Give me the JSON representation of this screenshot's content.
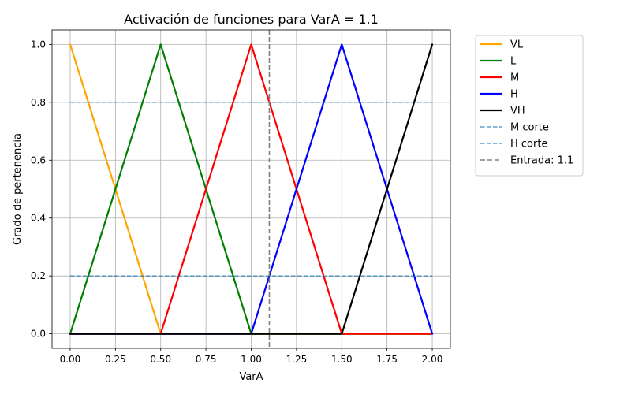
{
  "chart_data": {
    "type": "line",
    "title": "Activación de funciones para VarA = 1.1",
    "xlabel": "VarA",
    "ylabel": "Grado de pertenencia",
    "xlim": [
      -0.1,
      2.1
    ],
    "ylim": [
      -0.05,
      1.05
    ],
    "x_ticks": [
      0.0,
      0.25,
      0.5,
      0.75,
      1.0,
      1.25,
      1.5,
      1.75,
      2.0
    ],
    "x_tick_labels": [
      "0.00",
      "0.25",
      "0.50",
      "0.75",
      "1.00",
      "1.25",
      "1.50",
      "1.75",
      "2.00"
    ],
    "y_ticks": [
      0.0,
      0.2,
      0.4,
      0.6,
      0.8,
      1.0
    ],
    "y_tick_labels": [
      "0.0",
      "0.2",
      "0.4",
      "0.6",
      "0.8",
      "1.0"
    ],
    "grid": true,
    "legend_position": "outside-right-top",
    "series": [
      {
        "name": "VL",
        "color": "#ffa500",
        "style": "solid",
        "x": [
          0.0,
          0.5,
          2.0
        ],
        "y": [
          1.0,
          0.0,
          0.0
        ]
      },
      {
        "name": "L",
        "color": "#008000",
        "style": "solid",
        "x": [
          0.0,
          0.5,
          1.0,
          2.0
        ],
        "y": [
          0.0,
          1.0,
          0.0,
          0.0
        ]
      },
      {
        "name": "M",
        "color": "#ff0000",
        "style": "solid",
        "x": [
          0.0,
          0.5,
          1.0,
          1.5,
          2.0
        ],
        "y": [
          0.0,
          0.0,
          1.0,
          0.0,
          0.0
        ]
      },
      {
        "name": "H",
        "color": "#0000ff",
        "style": "solid",
        "x": [
          0.0,
          1.0,
          1.5,
          2.0
        ],
        "y": [
          0.0,
          0.0,
          1.0,
          0.0
        ]
      },
      {
        "name": "VH",
        "color": "#000000",
        "style": "solid",
        "x": [
          0.0,
          1.5,
          2.0
        ],
        "y": [
          0.0,
          0.0,
          1.0
        ]
      },
      {
        "name": "M corte",
        "color": "#1f77b4",
        "style": "dashed",
        "x": [
          0.0,
          2.0
        ],
        "y": [
          0.8,
          0.8
        ]
      },
      {
        "name": "H corte",
        "color": "#1f77b4",
        "style": "dashed",
        "x": [
          0.0,
          2.0
        ],
        "y": [
          0.2,
          0.2
        ]
      }
    ],
    "vertical_lines": [
      {
        "name": "Entrada: 1.1",
        "x": 1.1,
        "color": "#808080",
        "style": "dashed"
      }
    ]
  }
}
